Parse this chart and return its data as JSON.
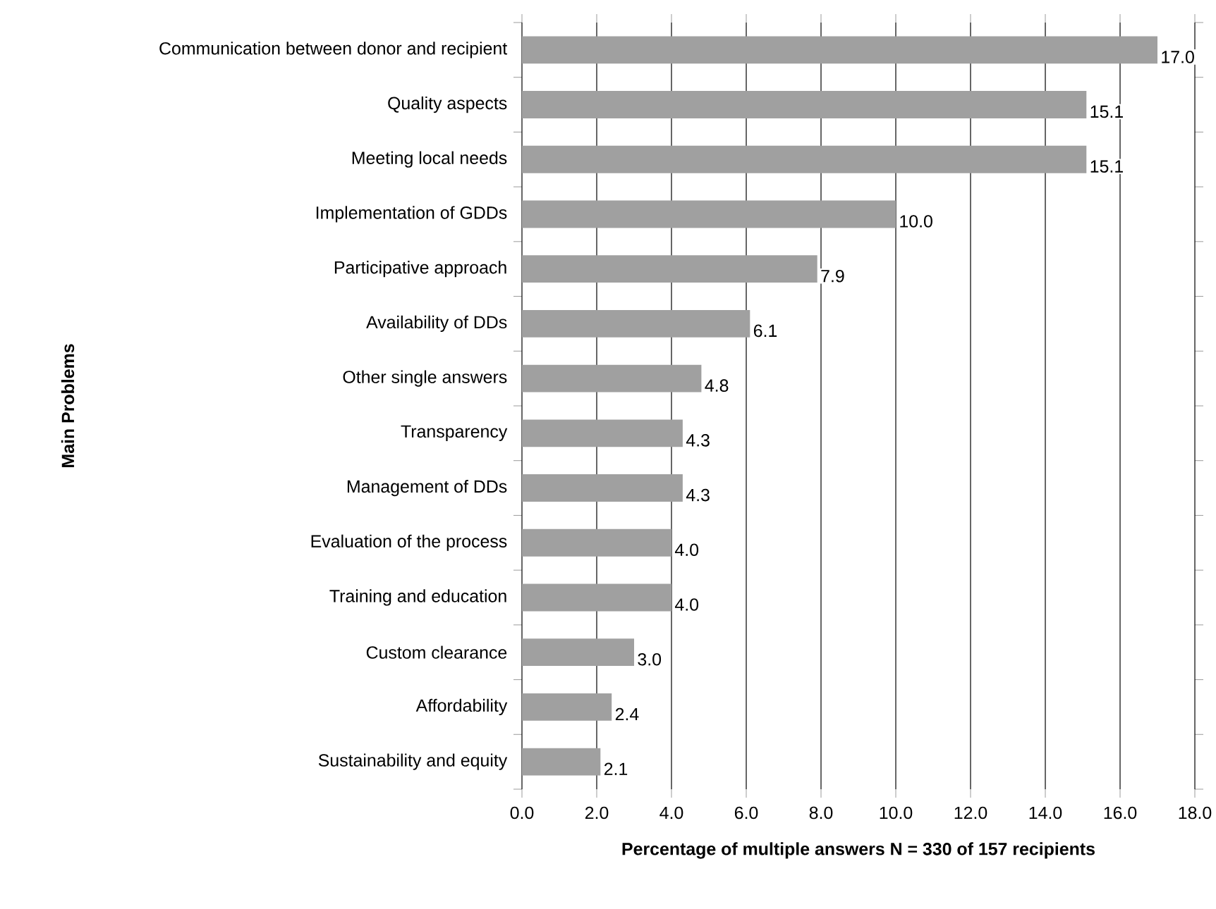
{
  "chart_data": {
    "type": "bar",
    "orientation": "horizontal",
    "categories": [
      "Communication between donor and recipient",
      "Quality aspects",
      "Meeting local needs",
      "Implementation of GDDs",
      "Participative approach",
      "Availability of DDs",
      "Other single answers",
      "Transparency",
      "Management of DDs",
      "Evaluation of the process",
      "Training and education",
      "Custom clearance",
      "Affordability",
      "Sustainability and equity"
    ],
    "values": [
      17.0,
      15.1,
      15.1,
      10.0,
      7.9,
      6.1,
      4.8,
      4.3,
      4.3,
      4.0,
      4.0,
      3.0,
      2.4,
      2.1
    ],
    "value_labels": [
      "17.0",
      "15.1",
      "15.1",
      "10.0",
      "7.9",
      "6.1",
      "4.8",
      "4.3",
      "4.3",
      "4.0",
      "4.0",
      "3.0",
      "2.4",
      "2.1"
    ],
    "color": "#a0a0a0",
    "xlabel": "Percentage of multiple answers N = 330 of 157 recipients",
    "ylabel": "Main Problems",
    "xlim": [
      0,
      18
    ],
    "xticks": [
      {
        "value": 0,
        "label": "0.0"
      },
      {
        "value": 2,
        "label": "2.0"
      },
      {
        "value": 4,
        "label": "4.0"
      },
      {
        "value": 6,
        "label": "6.0"
      },
      {
        "value": 8,
        "label": "8.0"
      },
      {
        "value": 10,
        "label": "10.0"
      },
      {
        "value": 12,
        "label": "12.0"
      },
      {
        "value": 14,
        "label": "14.0"
      },
      {
        "value": 16,
        "label": "16.0"
      },
      {
        "value": 18,
        "label": "18.0"
      }
    ],
    "grid": "x"
  }
}
